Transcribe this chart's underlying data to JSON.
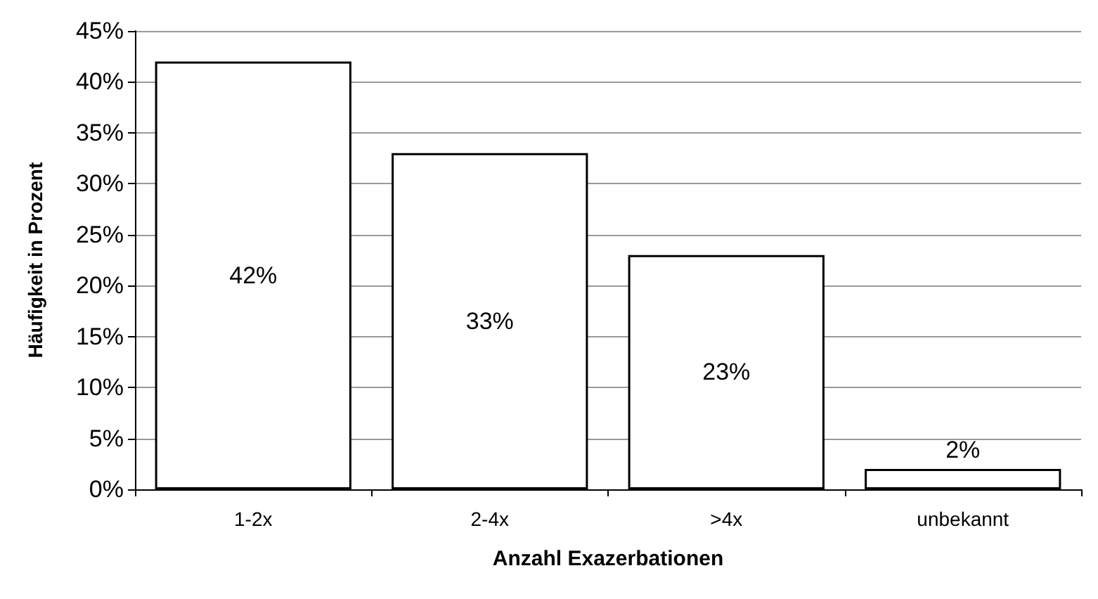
{
  "chart_data": {
    "type": "bar",
    "xlabel": "Anzahl Exazerbationen",
    "ylabel": "Häufigkeit in Prozent",
    "categories": [
      "1-2x",
      "2-4x",
      ">4x",
      "unbekannt"
    ],
    "values": [
      42,
      33,
      23,
      2
    ],
    "value_labels": [
      "42%",
      "33%",
      "23%",
      "2%"
    ],
    "color": "#ffffff",
    "ylim": [
      0,
      45
    ],
    "yticks": [
      {
        "value": 0,
        "label": "0%"
      },
      {
        "value": 5,
        "label": "5%"
      },
      {
        "value": 10,
        "label": "10%"
      },
      {
        "value": 15,
        "label": "15%"
      },
      {
        "value": 20,
        "label": "20%"
      },
      {
        "value": 25,
        "label": "25%"
      },
      {
        "value": 30,
        "label": "30%"
      },
      {
        "value": 35,
        "label": "35%"
      },
      {
        "value": 40,
        "label": "40%"
      },
      {
        "value": 45,
        "label": "45%"
      }
    ],
    "grid": "y"
  }
}
